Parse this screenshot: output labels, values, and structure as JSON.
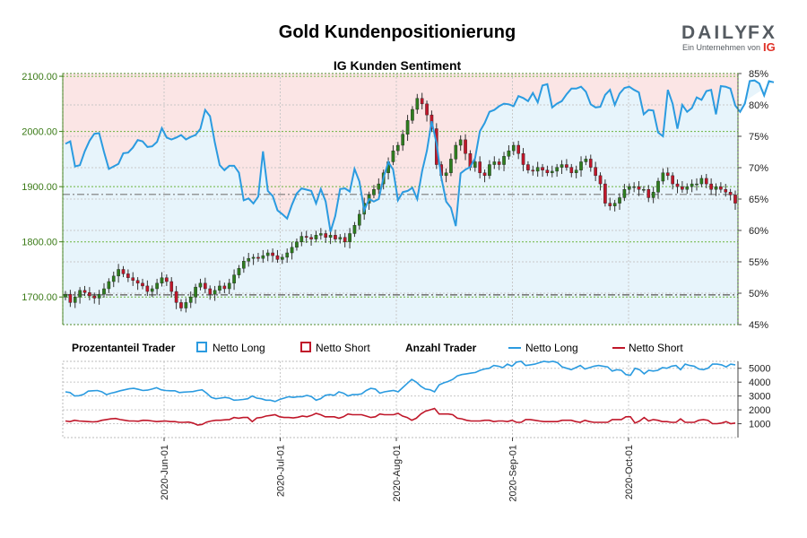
{
  "header": {
    "title": "Gold Kundenpositionierung",
    "subtitle": "IG Kunden Sentiment"
  },
  "logo": {
    "brand_left": "DAILY",
    "brand_right": "FX",
    "tagline": "Ein Unternehmen von",
    "ig": "IG"
  },
  "legend": {
    "group1": "Prozentanteil Trader",
    "group1_long": "Netto Long",
    "group1_short": "Netto Short",
    "group2": "Anzahl Trader",
    "group2_long": "Netto Long",
    "group2_short": "Netto Short"
  },
  "colors": {
    "long": "#2b9be0",
    "short": "#c0172a",
    "long_fill": "#e7f4fb",
    "short_fill": "#fbe5e5",
    "candle_up": "#2e7d1e",
    "candle_down": "#c0172a",
    "price_axis": "#3a7a16"
  },
  "chart_data": [
    {
      "type": "candlestick+line",
      "title": "IG Kunden Sentiment",
      "y_left_ticks": [
        "1700.00",
        "1800.00",
        "1900.00",
        "2000.00",
        "2100.00"
      ],
      "y_left_range": [
        1650,
        2105
      ],
      "y_right_ticks": [
        "45%",
        "50%",
        "55%",
        "60%",
        "65%",
        "70%",
        "75%",
        "80%",
        "85%"
      ],
      "y_right_range": [
        45,
        85
      ],
      "x_ticks": [
        "2020-Jun-01",
        "2020-Jul-01",
        "2020-Aug-01",
        "2020-Sep-01",
        "2020-Oct-01"
      ],
      "reference_lines": [
        1886,
        1704
      ],
      "price_close": [
        1705,
        1690,
        1700,
        1712,
        1708,
        1702,
        1698,
        1705,
        1715,
        1728,
        1738,
        1750,
        1742,
        1735,
        1730,
        1725,
        1720,
        1710,
        1715,
        1725,
        1735,
        1728,
        1710,
        1690,
        1680,
        1690,
        1700,
        1718,
        1725,
        1715,
        1705,
        1712,
        1720,
        1715,
        1725,
        1740,
        1752,
        1765,
        1770,
        1772,
        1770,
        1775,
        1780,
        1775,
        1768,
        1772,
        1780,
        1790,
        1800,
        1810,
        1808,
        1805,
        1812,
        1815,
        1808,
        1812,
        1805,
        1808,
        1800,
        1815,
        1830,
        1850,
        1870,
        1885,
        1895,
        1905,
        1925,
        1945,
        1965,
        1975,
        1995,
        2020,
        2040,
        2060,
        2050,
        2030,
        2005,
        1940,
        1920,
        1925,
        1950,
        1975,
        1985,
        1960,
        1935,
        1945,
        1925,
        1920,
        1940,
        1945,
        1940,
        1955,
        1965,
        1975,
        1960,
        1940,
        1930,
        1928,
        1935,
        1930,
        1925,
        1928,
        1935,
        1940,
        1935,
        1925,
        1930,
        1945,
        1950,
        1935,
        1920,
        1905,
        1870,
        1865,
        1870,
        1880,
        1895,
        1900,
        1900,
        1895,
        1895,
        1880,
        1890,
        1910,
        1925,
        1920,
        1905,
        1900,
        1895,
        1900,
        1905,
        1905,
        1915,
        1905,
        1895,
        1900,
        1895,
        1890,
        1885,
        1870
      ],
      "net_long_pct": [
        73.8,
        74.2,
        70.2,
        70.4,
        72.6,
        74.3,
        75.4,
        75.5,
        72.5,
        69.8,
        70.2,
        70.6,
        72.3,
        72.4,
        73.2,
        74.4,
        74.2,
        73.3,
        73.4,
        74.1,
        76.3,
        74.8,
        74.5,
        74.8,
        75.2,
        74.5,
        74.9,
        75.2,
        76.2,
        79.2,
        78.2,
        74.0,
        70.4,
        69.6,
        70.3,
        70.3,
        69.2,
        64.8,
        65.1,
        64.3,
        65.4,
        72.6,
        66.3,
        65.5,
        63.2,
        62.6,
        61.9,
        64.1,
        65.9,
        66.7,
        66.5,
        66.3,
        64.3,
        66.6,
        64.6,
        59.8,
        62.3,
        66.6,
        66.7,
        66.2,
        69.8,
        67.8,
        63.2,
        65.0,
        64.6,
        65.0,
        68.4,
        70.9,
        69.7,
        64.8,
        66.1,
        66.3,
        66.8,
        65.0,
        69.4,
        72.7,
        77.4,
        73.9,
        68.4,
        64.6,
        63.6,
        60.7,
        69.1,
        69.7,
        70.1,
        71.5,
        75.8,
        77.1,
        78.9,
        79.2,
        79.8,
        80.2,
        80.1,
        79.8,
        81.4,
        81.1,
        80.6,
        81.9,
        80.4,
        83.1,
        83.3,
        79.6,
        80.2,
        80.6,
        81.7,
        82.6,
        82.6,
        82.9,
        82.1,
        80.1,
        79.6,
        79.7,
        81.6,
        82.4,
        80.0,
        81.8,
        82.7,
        82.9,
        82.4,
        82.0,
        78.5,
        79.2,
        79.1,
        75.6,
        75.0,
        82.4,
        80.2,
        76.2,
        80.0,
        78.9,
        79.5,
        81.2,
        80.8,
        82.2,
        82.4,
        78.5,
        83.0,
        82.9,
        82.6,
        79.9,
        78.9,
        80.2,
        83.8,
        83.9,
        83.4,
        81.5,
        83.8,
        83.6
      ]
    },
    {
      "type": "line",
      "y_ticks": [
        "1000",
        "2000",
        "3000",
        "4000",
        "5000"
      ],
      "y_range": [
        0,
        5500
      ],
      "series": [
        {
          "name": "Netto Long",
          "values": [
            3300,
            3250,
            3000,
            3020,
            3120,
            3350,
            3380,
            3400,
            3300,
            3100,
            3200,
            3280,
            3380,
            3450,
            3520,
            3550,
            3480,
            3400,
            3420,
            3500,
            3600,
            3450,
            3400,
            3380,
            3380,
            3250,
            3280,
            3300,
            3320,
            3400,
            3450,
            3200,
            2900,
            2800,
            2850,
            2900,
            2850,
            2700,
            2720,
            2750,
            2800,
            3000,
            2850,
            2800,
            2700,
            2700,
            2600,
            2750,
            2850,
            2950,
            2900,
            2950,
            2950,
            3050,
            2950,
            2700,
            2800,
            3050,
            3100,
            3050,
            3300,
            3200,
            3000,
            3100,
            3100,
            3150,
            3400,
            3550,
            3500,
            3200,
            3300,
            3350,
            3400,
            3300,
            3600,
            3900,
            4200,
            4000,
            3700,
            3500,
            3450,
            3300,
            3800,
            3950,
            4050,
            4200,
            4450,
            4550,
            4600,
            4650,
            4700,
            4850,
            4950,
            5000,
            5200,
            5150,
            5050,
            5300,
            5150,
            5450,
            5500,
            5200,
            5250,
            5300,
            5400,
            5500,
            5450,
            5500,
            5400,
            5100,
            5000,
            4900,
            5050,
            5200,
            4950,
            5050,
            5150,
            5200,
            5150,
            5100,
            4800,
            4900,
            4850,
            4550,
            4500,
            5000,
            4900,
            4600,
            4850,
            4800,
            4850,
            5050,
            5000,
            5150,
            5200,
            4900,
            5300,
            5200,
            5150,
            4950,
            4900,
            5000,
            5300,
            5300,
            5250,
            5100,
            5300,
            5250
          ]
        },
        {
          "name": "Netto Short",
          "values": [
            1200,
            1150,
            1250,
            1200,
            1180,
            1150,
            1130,
            1150,
            1250,
            1300,
            1350,
            1380,
            1300,
            1250,
            1200,
            1200,
            1180,
            1250,
            1240,
            1200,
            1150,
            1180,
            1200,
            1150,
            1150,
            1100,
            1100,
            1120,
            1050,
            900,
            950,
            1120,
            1200,
            1250,
            1250,
            1280,
            1300,
            1450,
            1400,
            1450,
            1450,
            1150,
            1420,
            1450,
            1550,
            1600,
            1650,
            1500,
            1450,
            1450,
            1420,
            1470,
            1550,
            1500,
            1600,
            1750,
            1650,
            1500,
            1500,
            1500,
            1400,
            1500,
            1700,
            1650,
            1650,
            1650,
            1550,
            1450,
            1500,
            1700,
            1650,
            1650,
            1650,
            1750,
            1550,
            1450,
            1250,
            1400,
            1700,
            1900,
            2000,
            2100,
            1700,
            1700,
            1700,
            1650,
            1400,
            1350,
            1250,
            1200,
            1200,
            1200,
            1250,
            1250,
            1150,
            1200,
            1200,
            1150,
            1250,
            1100,
            1100,
            1300,
            1300,
            1250,
            1200,
            1150,
            1150,
            1150,
            1150,
            1250,
            1250,
            1250,
            1150,
            1100,
            1250,
            1150,
            1100,
            1100,
            1100,
            1100,
            1300,
            1300,
            1300,
            1500,
            1500,
            1050,
            1200,
            1450,
            1200,
            1300,
            1250,
            1150,
            1150,
            1100,
            1100,
            1350,
            1100,
            1100,
            1100,
            1250,
            1300,
            1250,
            1000,
            1000,
            1050,
            1150,
            1000,
            1050
          ]
        }
      ]
    }
  ]
}
